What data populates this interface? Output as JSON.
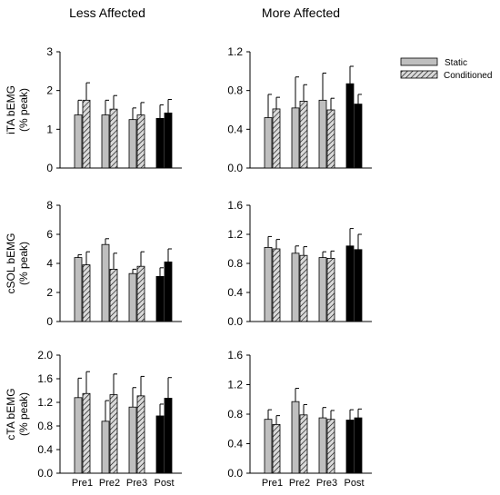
{
  "column_titles": [
    "Less Affected",
    "More Affected"
  ],
  "x_categories": [
    "Pre1",
    "Pre2",
    "Pre3",
    "Post"
  ],
  "legend": {
    "static_label": "Static",
    "conditioned_label": "Conditioned"
  },
  "colors": {
    "static_fill": "#bfbfbf",
    "conditioned_fill": "#d9d9d9",
    "hatch": "#000000",
    "post_fill": "#000000",
    "axis": "#000000"
  },
  "chart_data": [
    {
      "type": "bar",
      "panel": "iTA-less",
      "ylabel_line1": "iTA bEMG",
      "ylabel_line2": "(% peak)",
      "ylim": [
        0,
        3
      ],
      "yticks": [
        "0",
        "1",
        "2",
        "3"
      ],
      "ytick_values": [
        0,
        1,
        2,
        3
      ],
      "categories": [
        "Pre1",
        "Pre2",
        "Pre3",
        "Post"
      ],
      "series": [
        {
          "name": "Static",
          "values": [
            1.37,
            1.37,
            1.25,
            1.28
          ],
          "errors": [
            0.38,
            0.38,
            0.3,
            0.35
          ]
        },
        {
          "name": "Conditioned",
          "values": [
            1.75,
            1.52,
            1.37,
            1.42
          ],
          "errors": [
            0.45,
            0.35,
            0.32,
            0.35
          ]
        }
      ]
    },
    {
      "type": "bar",
      "panel": "iTA-more",
      "ylabel_line1": "",
      "ylabel_line2": "",
      "ylim": [
        0,
        1.2
      ],
      "yticks": [
        "0.0",
        "0.4",
        "0.8",
        "1.2"
      ],
      "ytick_values": [
        0,
        0.4,
        0.8,
        1.2
      ],
      "categories": [
        "Pre1",
        "Pre2",
        "Pre3",
        "Post"
      ],
      "series": [
        {
          "name": "Static",
          "values": [
            0.52,
            0.62,
            0.7,
            0.87
          ],
          "errors": [
            0.24,
            0.32,
            0.28,
            0.18
          ]
        },
        {
          "name": "Conditioned",
          "values": [
            0.61,
            0.69,
            0.6,
            0.66
          ],
          "errors": [
            0.12,
            0.17,
            0.12,
            0.1
          ]
        }
      ]
    },
    {
      "type": "bar",
      "panel": "cSOL-less",
      "ylabel_line1": "cSOL bEMG",
      "ylabel_line2": "(% peak)",
      "ylim": [
        0,
        8
      ],
      "yticks": [
        "0",
        "2",
        "4",
        "6",
        "8"
      ],
      "ytick_values": [
        0,
        2,
        4,
        6,
        8
      ],
      "categories": [
        "Pre1",
        "Pre2",
        "Pre3",
        "Post"
      ],
      "series": [
        {
          "name": "Static",
          "values": [
            4.4,
            5.3,
            3.3,
            3.1
          ],
          "errors": [
            0.2,
            0.4,
            0.3,
            0.6
          ]
        },
        {
          "name": "Conditioned",
          "values": [
            3.9,
            3.6,
            3.8,
            4.1
          ],
          "errors": [
            0.9,
            1.1,
            1.0,
            0.9
          ]
        }
      ]
    },
    {
      "type": "bar",
      "panel": "cSOL-more",
      "ylabel_line1": "",
      "ylabel_line2": "",
      "ylim": [
        0,
        1.6
      ],
      "yticks": [
        "0.0",
        "0.4",
        "0.8",
        "1.2",
        "1.6"
      ],
      "ytick_values": [
        0,
        0.4,
        0.8,
        1.2,
        1.6
      ],
      "categories": [
        "Pre1",
        "Pre2",
        "Pre3",
        "Post"
      ],
      "series": [
        {
          "name": "Static",
          "values": [
            1.02,
            0.94,
            0.88,
            1.04
          ],
          "errors": [
            0.15,
            0.1,
            0.08,
            0.24
          ]
        },
        {
          "name": "Conditioned",
          "values": [
            1.0,
            0.91,
            0.87,
            0.99
          ],
          "errors": [
            0.13,
            0.12,
            0.1,
            0.21
          ]
        }
      ]
    },
    {
      "type": "bar",
      "panel": "cTA-less",
      "ylabel_line1": "cTA bEMG",
      "ylabel_line2": "(% peak)",
      "ylim": [
        0,
        2.0
      ],
      "yticks": [
        "0.0",
        "0.4",
        "0.8",
        "1.2",
        "1.6",
        "2.0"
      ],
      "ytick_values": [
        0,
        0.4,
        0.8,
        1.2,
        1.6,
        2.0
      ],
      "categories": [
        "Pre1",
        "Pre2",
        "Pre3",
        "Post"
      ],
      "series": [
        {
          "name": "Static",
          "values": [
            1.28,
            0.88,
            1.12,
            0.97
          ],
          "errors": [
            0.33,
            0.35,
            0.33,
            0.2
          ]
        },
        {
          "name": "Conditioned",
          "values": [
            1.35,
            1.33,
            1.31,
            1.27
          ],
          "errors": [
            0.37,
            0.35,
            0.33,
            0.35
          ]
        }
      ]
    },
    {
      "type": "bar",
      "panel": "cTA-more",
      "ylabel_line1": "",
      "ylabel_line2": "",
      "ylim": [
        0,
        1.6
      ],
      "yticks": [
        "0.0",
        "0.4",
        "0.8",
        "1.2",
        "1.6"
      ],
      "ytick_values": [
        0,
        0.4,
        0.8,
        1.2,
        1.6
      ],
      "categories": [
        "Pre1",
        "Pre2",
        "Pre3",
        "Post"
      ],
      "series": [
        {
          "name": "Static",
          "values": [
            0.73,
            0.97,
            0.75,
            0.72
          ],
          "errors": [
            0.13,
            0.18,
            0.14,
            0.14
          ]
        },
        {
          "name": "Conditioned",
          "values": [
            0.66,
            0.79,
            0.73,
            0.75
          ],
          "errors": [
            0.12,
            0.14,
            0.12,
            0.12
          ]
        }
      ]
    }
  ]
}
